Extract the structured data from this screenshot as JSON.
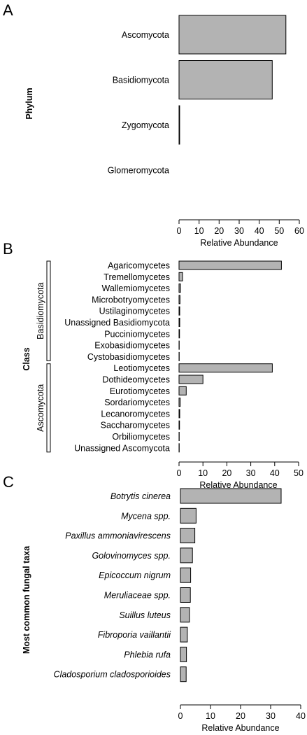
{
  "colors": {
    "bar_fill": "#b3b3b3",
    "bar_stroke": "#000000"
  },
  "chart_data": [
    {
      "type": "bar",
      "orientation": "horizontal",
      "panel": "A",
      "ylabel": "Phylum",
      "xlabel": "Relative Abundance",
      "xlim": [
        0,
        60
      ],
      "xticks": [
        0,
        10,
        20,
        30,
        40,
        50,
        60
      ],
      "categories": [
        "Ascomycota",
        "Basidiomycota",
        "Zygomycota",
        "Glomeromycota"
      ],
      "values": [
        53.3,
        46.5,
        0.3,
        0.0
      ],
      "grid": false
    },
    {
      "type": "bar",
      "orientation": "horizontal",
      "panel": "B",
      "ylabel": "Class",
      "xlabel": "Relative Abundance",
      "xlim": [
        0,
        50
      ],
      "xticks": [
        0,
        10,
        20,
        30,
        40,
        50
      ],
      "groups": [
        {
          "name": "Basidiomycota",
          "from": 0,
          "to": 8
        },
        {
          "name": "Ascomycota",
          "from": 9,
          "to": 16
        }
      ],
      "categories": [
        "Agaricomycetes",
        "Tremellomycetes",
        "Wallemiomycetes",
        "Microbotryomycetes",
        "Ustilaginomycetes",
        "Unassigned Basidiomycota",
        "Pucciniomycetes",
        "Exobasidiomycetes",
        "Cystobasidiomycetes",
        "Leotiomycetes",
        "Dothideomycetes",
        "Eurotiomycetes",
        "Sordariomycetes",
        "Lecanoromycetes",
        "Saccharomycetes",
        "Orbiliomycetes",
        "Unassigned Ascomycota"
      ],
      "values": [
        42.8,
        1.5,
        0.6,
        0.4,
        0.3,
        0.3,
        0.2,
        0.1,
        0.1,
        39.0,
        10.0,
        3.0,
        0.5,
        0.3,
        0.2,
        0.1,
        0.1
      ],
      "grid": false
    },
    {
      "type": "bar",
      "orientation": "horizontal",
      "panel": "C",
      "ylabel": "Most common fungal taxa",
      "xlabel": "Relative Abundance",
      "xlim": [
        0,
        40
      ],
      "xticks": [
        0,
        10,
        20,
        30,
        40
      ],
      "categories": [
        "Botrytis cinerea",
        "Mycena spp.",
        "Paxillus ammoniavirescens",
        "Golovinomyces spp.",
        "Epicoccum nigrum",
        "Meruliaceae spp.",
        "Suillus luteus",
        "Fibroporia vaillantii",
        "Phlebia rufa",
        "Cladosporium cladosporioides"
      ],
      "values": [
        33.5,
        5.2,
        4.8,
        4.0,
        3.4,
        3.3,
        3.0,
        2.3,
        2.0,
        1.9
      ],
      "italic_categories": true,
      "grid": false
    }
  ]
}
